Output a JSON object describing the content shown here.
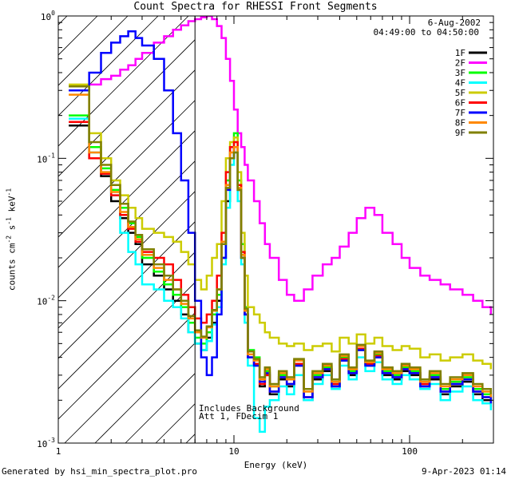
{
  "chart_data": {
    "type": "line",
    "title": "Count Spectra for RHESSI Front Segments",
    "xlabel": "Energy (keV)",
    "ylabel_parts": [
      "counts cm",
      "-2",
      " s",
      "-1",
      " keV",
      "-1"
    ],
    "x_scale": "log",
    "y_scale": "log",
    "xlim": [
      1.0,
      300.0
    ],
    "ylim": [
      0.001,
      1.0
    ],
    "x_ticks": [
      {
        "value": 1,
        "label": "1"
      },
      {
        "value": 10,
        "label": "10"
      },
      {
        "value": 100,
        "label": "100"
      }
    ],
    "y_ticks": [
      {
        "value": 0.001,
        "base": "10",
        "exp": "-3"
      },
      {
        "value": 0.01,
        "base": "10",
        "exp": "-2"
      },
      {
        "value": 0.1,
        "base": "10",
        "exp": "-1"
      },
      {
        "value": 1,
        "base": "10",
        "exp": "0"
      }
    ],
    "date": "6-Aug-2002",
    "time_range": "04:49:00 to 04:50:00",
    "vertical_line_x": 6.0,
    "annotations": [
      "Includes Background",
      "Att 1, FDecim 1"
    ],
    "legend_position": "top-right",
    "series": [
      {
        "name": "1F",
        "color": "#000000",
        "x": [
          1.3,
          1.5,
          1.75,
          2.0,
          2.25,
          2.5,
          2.75,
          3.0,
          3.5,
          4.0,
          4.5,
          5.0,
          5.5,
          6.0,
          6.5,
          7.0,
          7.5,
          8.0,
          8.5,
          9.0,
          9.5,
          10.0,
          10.5,
          11.0,
          11.5,
          12.0,
          13.0,
          14.0,
          15.0,
          16.0,
          18.0,
          20.0,
          22.0,
          25.0,
          28.0,
          32.0,
          36.0,
          40.0,
          45.0,
          50.0,
          56.0,
          63.0,
          70.0,
          80.0,
          90.0,
          100.0,
          115.0,
          130.0,
          150.0,
          170.0,
          200.0,
          230.0,
          260.0,
          290.0
        ],
        "y": [
          0.17,
          0.1,
          0.075,
          0.05,
          0.038,
          0.03,
          0.025,
          0.018,
          0.015,
          0.012,
          0.01,
          0.008,
          0.006,
          0.005,
          0.0045,
          0.0055,
          0.007,
          0.01,
          0.02,
          0.05,
          0.1,
          0.12,
          0.06,
          0.02,
          0.008,
          0.004,
          0.0035,
          0.0025,
          0.003,
          0.0022,
          0.0028,
          0.0025,
          0.0035,
          0.002,
          0.0028,
          0.0032,
          0.0025,
          0.0038,
          0.003,
          0.0045,
          0.0035,
          0.004,
          0.003,
          0.0028,
          0.0032,
          0.003,
          0.0025,
          0.0028,
          0.0022,
          0.0025,
          0.0027,
          0.0022,
          0.002,
          0.0018
        ]
      },
      {
        "name": "2F",
        "color": "#ff00ff",
        "x": [
          1.3,
          1.5,
          1.75,
          2.0,
          2.25,
          2.5,
          2.75,
          3.0,
          3.5,
          4.0,
          4.5,
          5.0,
          5.5,
          6.0,
          6.5,
          7.0,
          7.5,
          8.0,
          8.5,
          9.0,
          9.5,
          10.0,
          10.5,
          11.0,
          11.5,
          12.0,
          13.0,
          14.0,
          15.0,
          16.0,
          18.0,
          20.0,
          22.0,
          25.0,
          28.0,
          32.0,
          36.0,
          40.0,
          45.0,
          50.0,
          56.0,
          63.0,
          70.0,
          80.0,
          90.0,
          100.0,
          115.0,
          130.0,
          150.0,
          170.0,
          200.0,
          230.0,
          260.0,
          290.0
        ],
        "y": [
          0.3,
          0.33,
          0.36,
          0.38,
          0.42,
          0.45,
          0.5,
          0.55,
          0.65,
          0.72,
          0.8,
          0.86,
          0.92,
          0.95,
          0.98,
          1.0,
          0.95,
          0.85,
          0.7,
          0.5,
          0.35,
          0.22,
          0.15,
          0.12,
          0.09,
          0.07,
          0.05,
          0.035,
          0.025,
          0.02,
          0.014,
          0.011,
          0.01,
          0.012,
          0.015,
          0.018,
          0.02,
          0.024,
          0.03,
          0.038,
          0.045,
          0.04,
          0.03,
          0.025,
          0.02,
          0.017,
          0.015,
          0.014,
          0.013,
          0.012,
          0.011,
          0.01,
          0.009,
          0.008
        ]
      },
      {
        "name": "3F",
        "color": "#00ff00",
        "x": [
          1.3,
          1.5,
          1.75,
          2.0,
          2.25,
          2.5,
          2.75,
          3.0,
          3.5,
          4.0,
          4.5,
          5.0,
          5.5,
          6.0,
          6.5,
          7.0,
          7.5,
          8.0,
          8.5,
          9.0,
          9.5,
          10.0,
          10.5,
          11.0,
          11.5,
          12.0,
          13.0,
          14.0,
          15.0,
          16.0,
          18.0,
          20.0,
          22.0,
          25.0,
          28.0,
          32.0,
          36.0,
          40.0,
          45.0,
          50.0,
          56.0,
          63.0,
          70.0,
          80.0,
          90.0,
          100.0,
          115.0,
          130.0,
          150.0,
          170.0,
          200.0,
          230.0,
          260.0,
          290.0
        ],
        "y": [
          0.2,
          0.12,
          0.085,
          0.06,
          0.045,
          0.035,
          0.028,
          0.02,
          0.016,
          0.013,
          0.011,
          0.009,
          0.007,
          0.0055,
          0.005,
          0.006,
          0.008,
          0.011,
          0.025,
          0.07,
          0.12,
          0.15,
          0.07,
          0.025,
          0.009,
          0.0045,
          0.004,
          0.0028,
          0.0032,
          0.0025,
          0.003,
          0.0028,
          0.0036,
          0.0024,
          0.003,
          0.0034,
          0.0027,
          0.004,
          0.0032,
          0.0046,
          0.0036,
          0.0042,
          0.0032,
          0.003,
          0.0034,
          0.0032,
          0.0027,
          0.003,
          0.0024,
          0.0027,
          0.0029,
          0.0024,
          0.0022,
          0.002
        ]
      },
      {
        "name": "4F",
        "color": "#00ffff",
        "x": [
          1.3,
          1.5,
          1.75,
          2.0,
          2.25,
          2.5,
          2.75,
          3.0,
          3.5,
          4.0,
          4.5,
          5.0,
          5.5,
          6.0,
          6.5,
          7.0,
          7.5,
          8.0,
          8.5,
          9.0,
          9.5,
          10.0,
          10.5,
          11.0,
          11.5,
          12.0,
          13.0,
          14.0,
          15.0,
          16.0,
          18.0,
          20.0,
          22.0,
          25.0,
          28.0,
          32.0,
          36.0,
          40.0,
          45.0,
          50.0,
          56.0,
          63.0,
          70.0,
          80.0,
          90.0,
          100.0,
          115.0,
          130.0,
          150.0,
          170.0,
          200.0,
          230.0,
          260.0,
          290.0
        ],
        "y": [
          0.19,
          0.11,
          0.08,
          0.055,
          0.03,
          0.022,
          0.018,
          0.013,
          0.012,
          0.01,
          0.009,
          0.0075,
          0.006,
          0.005,
          0.0045,
          0.0052,
          0.0068,
          0.009,
          0.018,
          0.045,
          0.09,
          0.11,
          0.05,
          0.018,
          0.007,
          0.0035,
          0.0015,
          0.0012,
          0.0018,
          0.002,
          0.0025,
          0.0022,
          0.003,
          0.002,
          0.0026,
          0.003,
          0.0024,
          0.0035,
          0.0028,
          0.004,
          0.0032,
          0.0037,
          0.0028,
          0.0026,
          0.003,
          0.0028,
          0.0024,
          0.0026,
          0.002,
          0.0023,
          0.0025,
          0.002,
          0.0019,
          0.0017
        ]
      },
      {
        "name": "5F",
        "color": "#cccc00",
        "x": [
          1.3,
          1.5,
          1.75,
          2.0,
          2.25,
          2.5,
          2.75,
          3.0,
          3.5,
          4.0,
          4.5,
          5.0,
          5.5,
          6.0,
          6.5,
          7.0,
          7.5,
          8.0,
          8.5,
          9.0,
          9.5,
          10.0,
          10.5,
          11.0,
          11.5,
          12.0,
          13.0,
          14.0,
          15.0,
          16.0,
          18.0,
          20.0,
          22.0,
          25.0,
          28.0,
          32.0,
          36.0,
          40.0,
          45.0,
          50.0,
          56.0,
          63.0,
          70.0,
          80.0,
          90.0,
          100.0,
          115.0,
          130.0,
          150.0,
          170.0,
          200.0,
          230.0,
          260.0,
          290.0
        ],
        "y": [
          0.33,
          0.15,
          0.1,
          0.07,
          0.055,
          0.045,
          0.038,
          0.032,
          0.03,
          0.028,
          0.026,
          0.022,
          0.018,
          0.014,
          0.012,
          0.015,
          0.02,
          0.025,
          0.05,
          0.1,
          0.13,
          0.14,
          0.08,
          0.03,
          0.015,
          0.009,
          0.008,
          0.007,
          0.006,
          0.0055,
          0.005,
          0.0048,
          0.005,
          0.0045,
          0.0048,
          0.005,
          0.0044,
          0.0055,
          0.005,
          0.0058,
          0.005,
          0.0055,
          0.0048,
          0.0045,
          0.0048,
          0.0046,
          0.004,
          0.0042,
          0.0038,
          0.004,
          0.0042,
          0.0038,
          0.0036,
          0.0033
        ]
      },
      {
        "name": "6F",
        "color": "#ff0000",
        "x": [
          1.3,
          1.5,
          1.75,
          2.0,
          2.25,
          2.5,
          2.75,
          3.0,
          3.5,
          4.0,
          4.5,
          5.0,
          5.5,
          6.0,
          6.5,
          7.0,
          7.5,
          8.0,
          8.5,
          9.0,
          9.5,
          10.0,
          10.5,
          11.0,
          11.5,
          12.0,
          13.0,
          14.0,
          15.0,
          16.0,
          18.0,
          20.0,
          22.0,
          25.0,
          28.0,
          32.0,
          36.0,
          40.0,
          45.0,
          50.0,
          56.0,
          63.0,
          70.0,
          80.0,
          90.0,
          100.0,
          115.0,
          130.0,
          150.0,
          170.0,
          200.0,
          230.0,
          260.0,
          290.0
        ],
        "y": [
          0.18,
          0.1,
          0.078,
          0.055,
          0.04,
          0.032,
          0.026,
          0.022,
          0.02,
          0.018,
          0.014,
          0.011,
          0.009,
          0.0075,
          0.007,
          0.008,
          0.01,
          0.015,
          0.03,
          0.08,
          0.12,
          0.13,
          0.065,
          0.022,
          0.008,
          0.004,
          0.0036,
          0.0026,
          0.003,
          0.0023,
          0.0029,
          0.0026,
          0.0036,
          0.0021,
          0.0029,
          0.0033,
          0.0026,
          0.0039,
          0.0031,
          0.0046,
          0.0036,
          0.0041,
          0.0031,
          0.0029,
          0.0033,
          0.0031,
          0.0026,
          0.0029,
          0.0023,
          0.0026,
          0.0028,
          0.0023,
          0.0021,
          0.0019
        ]
      },
      {
        "name": "7F",
        "color": "#0000ff",
        "x": [
          1.3,
          1.5,
          1.75,
          2.0,
          2.25,
          2.5,
          2.75,
          3.0,
          3.5,
          4.0,
          4.5,
          5.0,
          5.5,
          6.0,
          6.5,
          7.0,
          7.5,
          8.0,
          8.5,
          9.0,
          9.5,
          10.0,
          10.5,
          11.0,
          11.5,
          12.0,
          13.0,
          14.0,
          15.0,
          16.0,
          18.0,
          20.0,
          22.0,
          25.0,
          28.0,
          32.0,
          36.0,
          40.0,
          45.0,
          50.0,
          56.0,
          63.0,
          70.0,
          80.0,
          90.0,
          100.0,
          115.0,
          130.0,
          150.0,
          170.0,
          200.0,
          230.0,
          260.0,
          290.0
        ],
        "y": [
          0.3,
          0.4,
          0.55,
          0.65,
          0.72,
          0.78,
          0.7,
          0.62,
          0.5,
          0.3,
          0.15,
          0.07,
          0.03,
          0.01,
          0.004,
          0.003,
          0.004,
          0.008,
          0.02,
          0.06,
          0.1,
          0.12,
          0.06,
          0.02,
          0.008,
          0.004,
          0.0035,
          0.0027,
          0.0031,
          0.0023,
          0.0029,
          0.0026,
          0.0035,
          0.0021,
          0.0029,
          0.0033,
          0.0025,
          0.0038,
          0.0031,
          0.0045,
          0.0035,
          0.004,
          0.0031,
          0.0029,
          0.0033,
          0.0031,
          0.0025,
          0.0029,
          0.0023,
          0.0026,
          0.0028,
          0.0023,
          0.0021,
          0.0019
        ]
      },
      {
        "name": "8F",
        "color": "#ff8800",
        "x": [
          1.3,
          1.5,
          1.75,
          2.0,
          2.25,
          2.5,
          2.75,
          3.0,
          3.5,
          4.0,
          4.5,
          5.0,
          5.5,
          6.0,
          6.5,
          7.0,
          7.5,
          8.0,
          8.5,
          9.0,
          9.5,
          10.0,
          10.5,
          11.0,
          11.5,
          12.0,
          13.0,
          14.0,
          15.0,
          16.0,
          18.0,
          20.0,
          22.0,
          25.0,
          28.0,
          32.0,
          36.0,
          40.0,
          45.0,
          50.0,
          56.0,
          63.0,
          70.0,
          80.0,
          90.0,
          100.0,
          115.0,
          130.0,
          150.0,
          170.0,
          200.0,
          230.0,
          260.0,
          290.0
        ],
        "y": [
          0.28,
          0.11,
          0.08,
          0.058,
          0.042,
          0.033,
          0.027,
          0.021,
          0.017,
          0.014,
          0.012,
          0.0095,
          0.0075,
          0.006,
          0.0055,
          0.0065,
          0.0085,
          0.012,
          0.026,
          0.065,
          0.11,
          0.12,
          0.062,
          0.021,
          0.0085,
          0.0042,
          0.0038,
          0.0028,
          0.0033,
          0.0025,
          0.0031,
          0.0028,
          0.0038,
          0.0023,
          0.0031,
          0.0035,
          0.0027,
          0.0041,
          0.0033,
          0.0048,
          0.0037,
          0.0043,
          0.0033,
          0.0031,
          0.0035,
          0.0033,
          0.0027,
          0.0031,
          0.0025,
          0.0028,
          0.003,
          0.0025,
          0.0023,
          0.0021
        ]
      },
      {
        "name": "9F",
        "color": "#808000",
        "x": [
          1.3,
          1.5,
          1.75,
          2.0,
          2.25,
          2.5,
          2.75,
          3.0,
          3.5,
          4.0,
          4.5,
          5.0,
          5.5,
          6.0,
          6.5,
          7.0,
          7.5,
          8.0,
          8.5,
          9.0,
          9.5,
          10.0,
          10.5,
          11.0,
          11.5,
          12.0,
          13.0,
          14.0,
          15.0,
          16.0,
          18.0,
          20.0,
          22.0,
          25.0,
          28.0,
          32.0,
          36.0,
          40.0,
          45.0,
          50.0,
          56.0,
          63.0,
          70.0,
          80.0,
          90.0,
          100.0,
          115.0,
          130.0,
          150.0,
          170.0,
          200.0,
          230.0,
          260.0,
          290.0
        ],
        "y": [
          0.32,
          0.13,
          0.09,
          0.065,
          0.048,
          0.036,
          0.029,
          0.023,
          0.018,
          0.015,
          0.012,
          0.01,
          0.0078,
          0.0062,
          0.0056,
          0.0066,
          0.0086,
          0.012,
          0.025,
          0.062,
          0.1,
          0.11,
          0.06,
          0.02,
          0.0088,
          0.0044,
          0.0039,
          0.0029,
          0.0034,
          0.0026,
          0.0032,
          0.0029,
          0.0039,
          0.0024,
          0.0032,
          0.0036,
          0.0028,
          0.0042,
          0.0034,
          0.0049,
          0.0038,
          0.0044,
          0.0034,
          0.0032,
          0.0036,
          0.0034,
          0.0028,
          0.0032,
          0.0026,
          0.0029,
          0.0031,
          0.0026,
          0.0024,
          0.0022
        ]
      }
    ]
  },
  "footer": {
    "left": "Generated by hsi_min_spectra_plot.pro",
    "right": "9-Apr-2023 01:14"
  }
}
